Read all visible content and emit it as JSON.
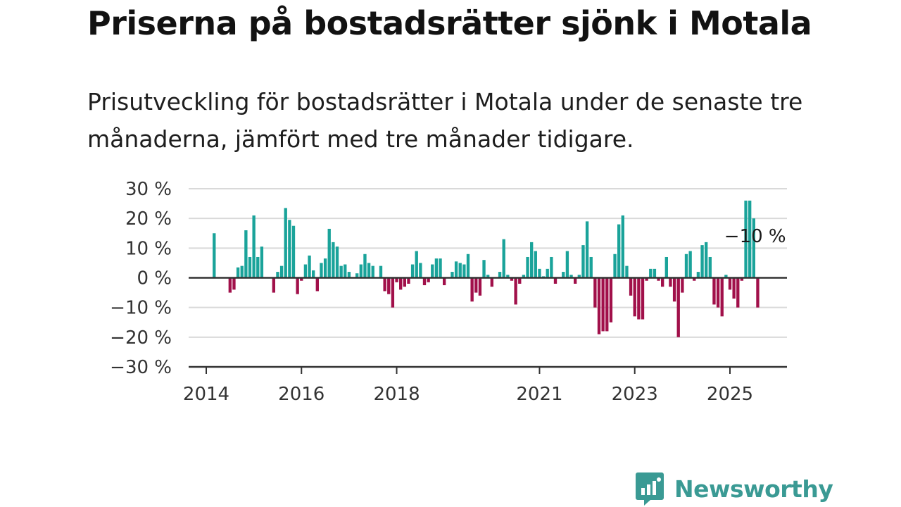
{
  "title": "Priserna på bostadsrätter sjönk i Motala",
  "subtitle": "Prisutveckling för bostadsrätter i Motala under de senaste tre månaderna, jämfört med tre månader tidigare.",
  "brand": {
    "name": "Newsworthy",
    "icon": "newsworthy-logo-icon"
  },
  "colors": {
    "positive": "#1aa39a",
    "negative": "#a1104a",
    "grid": "#d9d9d9",
    "axis": "#333333"
  },
  "chart_data": {
    "type": "bar",
    "x_unit": "month",
    "ylim": [
      -30,
      30
    ],
    "y_ticks": [
      30,
      20,
      10,
      0,
      -10,
      -20,
      -30
    ],
    "y_tick_labels": [
      "30 %",
      "20 %",
      "10 %",
      "0 %",
      "−10 %",
      "−20 %",
      "−30 %"
    ],
    "x_ticks": [
      "2014-01",
      "2016-01",
      "2018-01",
      "2021-01",
      "2023-01",
      "2025-01"
    ],
    "x_tick_labels": [
      "2014",
      "2016",
      "2018",
      "2021",
      "2023",
      "2025"
    ],
    "grid": true,
    "annotation": {
      "text": "−10 %",
      "x": "2025-07"
    },
    "values": [
      [
        "2014-03",
        15
      ],
      [
        "2014-05",
        0
      ],
      [
        "2014-07",
        -5
      ],
      [
        "2014-08",
        -4
      ],
      [
        "2014-09",
        3.5
      ],
      [
        "2014-10",
        4
      ],
      [
        "2014-11",
        16
      ],
      [
        "2014-12",
        7
      ],
      [
        "2015-01",
        21
      ],
      [
        "2015-02",
        7
      ],
      [
        "2015-03",
        10.5
      ],
      [
        "2015-06",
        -5
      ],
      [
        "2015-07",
        2
      ],
      [
        "2015-08",
        4
      ],
      [
        "2015-09",
        23.5
      ],
      [
        "2015-10",
        19.5
      ],
      [
        "2015-11",
        17.5
      ],
      [
        "2015-12",
        -5.5
      ],
      [
        "2016-01",
        -1
      ],
      [
        "2016-02",
        4.5
      ],
      [
        "2016-03",
        7.5
      ],
      [
        "2016-04",
        2.5
      ],
      [
        "2016-05",
        -4.5
      ],
      [
        "2016-06",
        5
      ],
      [
        "2016-07",
        6.5
      ],
      [
        "2016-08",
        16.5
      ],
      [
        "2016-09",
        12
      ],
      [
        "2016-10",
        10.5
      ],
      [
        "2016-11",
        4
      ],
      [
        "2016-12",
        4.5
      ],
      [
        "2017-01",
        2
      ],
      [
        "2017-03",
        1.5
      ],
      [
        "2017-04",
        4.5
      ],
      [
        "2017-05",
        8
      ],
      [
        "2017-06",
        5
      ],
      [
        "2017-07",
        4
      ],
      [
        "2017-09",
        4
      ],
      [
        "2017-10",
        -4.5
      ],
      [
        "2017-11",
        -5.5
      ],
      [
        "2017-12",
        -10
      ],
      [
        "2018-01",
        -1.5
      ],
      [
        "2018-02",
        -4
      ],
      [
        "2018-03",
        -3
      ],
      [
        "2018-04",
        -2
      ],
      [
        "2018-05",
        4.5
      ],
      [
        "2018-06",
        9
      ],
      [
        "2018-07",
        5
      ],
      [
        "2018-08",
        -2.5
      ],
      [
        "2018-09",
        -1.5
      ],
      [
        "2018-10",
        4.5
      ],
      [
        "2018-11",
        6.5
      ],
      [
        "2018-12",
        6.5
      ],
      [
        "2019-01",
        -2.5
      ],
      [
        "2019-03",
        2
      ],
      [
        "2019-04",
        5.5
      ],
      [
        "2019-05",
        5
      ],
      [
        "2019-06",
        4.5
      ],
      [
        "2019-07",
        8
      ],
      [
        "2019-08",
        -8
      ],
      [
        "2019-09",
        -5
      ],
      [
        "2019-10",
        -6
      ],
      [
        "2019-11",
        6
      ],
      [
        "2019-12",
        1
      ],
      [
        "2020-01",
        -3
      ],
      [
        "2020-03",
        2
      ],
      [
        "2020-04",
        13
      ],
      [
        "2020-05",
        1
      ],
      [
        "2020-06",
        -1
      ],
      [
        "2020-07",
        -9
      ],
      [
        "2020-08",
        -2
      ],
      [
        "2020-09",
        1
      ],
      [
        "2020-10",
        7
      ],
      [
        "2020-11",
        12
      ],
      [
        "2020-12",
        9
      ],
      [
        "2021-01",
        3
      ],
      [
        "2021-02",
        0.5
      ],
      [
        "2021-03",
        3
      ],
      [
        "2021-04",
        7
      ],
      [
        "2021-05",
        -2
      ],
      [
        "2021-07",
        2
      ],
      [
        "2021-08",
        9
      ],
      [
        "2021-09",
        1
      ],
      [
        "2021-10",
        -2
      ],
      [
        "2021-11",
        1
      ],
      [
        "2021-12",
        11
      ],
      [
        "2022-01",
        19
      ],
      [
        "2022-02",
        7
      ],
      [
        "2022-03",
        -10
      ],
      [
        "2022-04",
        -19
      ],
      [
        "2022-05",
        -18
      ],
      [
        "2022-06",
        -18
      ],
      [
        "2022-07",
        -15
      ],
      [
        "2022-08",
        8
      ],
      [
        "2022-09",
        18
      ],
      [
        "2022-10",
        21
      ],
      [
        "2022-11",
        4
      ],
      [
        "2022-12",
        -6
      ],
      [
        "2023-01",
        -13
      ],
      [
        "2023-02",
        -14
      ],
      [
        "2023-03",
        -14
      ],
      [
        "2023-04",
        -1
      ],
      [
        "2023-05",
        3
      ],
      [
        "2023-06",
        3
      ],
      [
        "2023-07",
        -1
      ],
      [
        "2023-08",
        -3
      ],
      [
        "2023-09",
        7
      ],
      [
        "2023-10",
        -3
      ],
      [
        "2023-11",
        -8
      ],
      [
        "2023-12",
        -20
      ],
      [
        "2024-01",
        -5
      ],
      [
        "2024-02",
        8
      ],
      [
        "2024-03",
        9
      ],
      [
        "2024-04",
        -1
      ],
      [
        "2024-05",
        2
      ],
      [
        "2024-06",
        11
      ],
      [
        "2024-07",
        12
      ],
      [
        "2024-08",
        7
      ],
      [
        "2024-09",
        -9
      ],
      [
        "2024-10",
        -10
      ],
      [
        "2024-11",
        -13
      ],
      [
        "2024-12",
        1
      ],
      [
        "2025-01",
        -4
      ],
      [
        "2025-02",
        -7
      ],
      [
        "2025-03",
        -10
      ],
      [
        "2025-04",
        -1
      ],
      [
        "2025-05",
        26
      ],
      [
        "2025-06",
        26
      ],
      [
        "2025-07",
        20
      ],
      [
        "2025-08",
        -10
      ]
    ]
  }
}
